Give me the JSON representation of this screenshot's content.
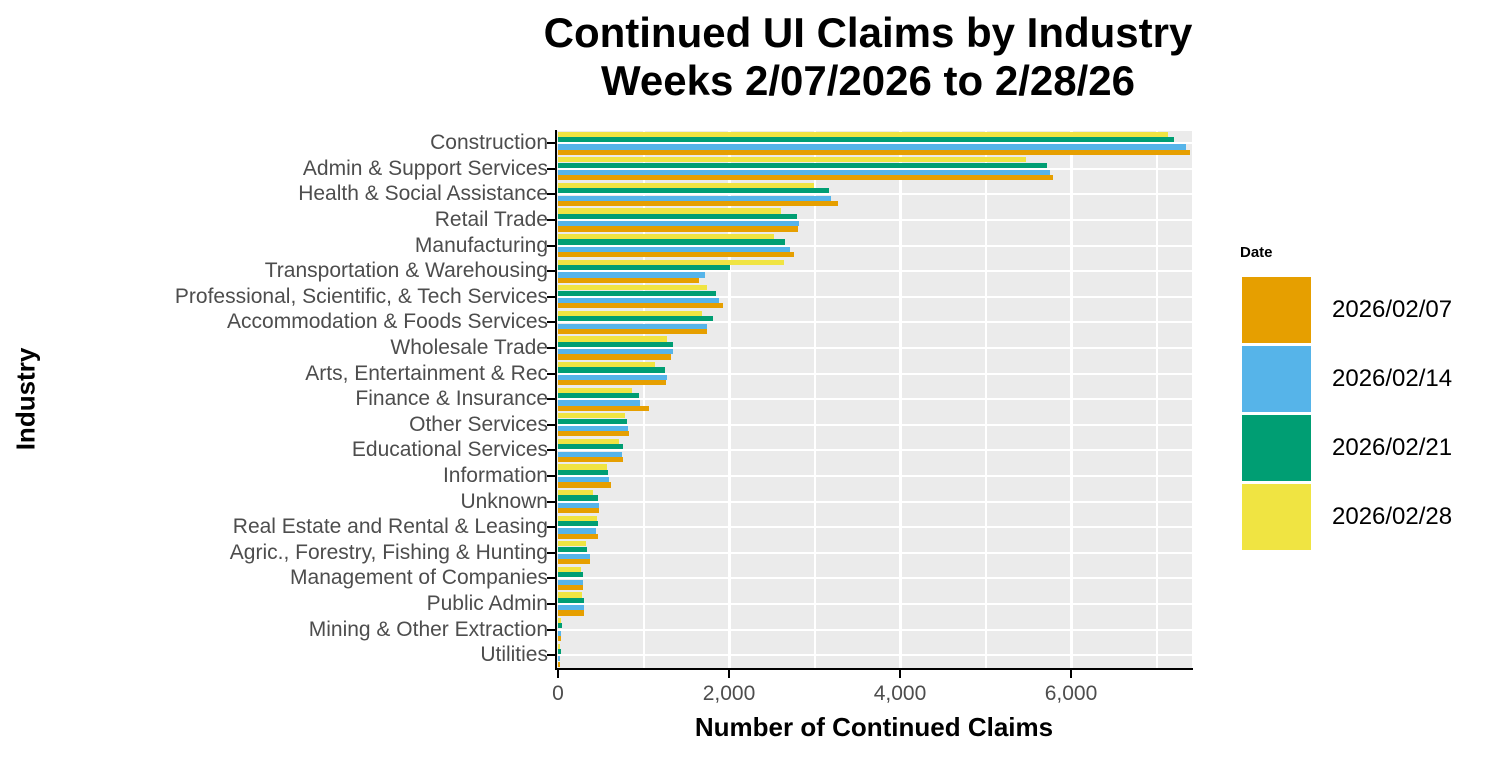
{
  "title": {
    "line1": "Continued UI Claims by Industry",
    "line2": "Weeks 2/07/2026 to 2/28/26"
  },
  "x_axis": {
    "label": "Number of Continued Claims",
    "ticks": [
      {
        "label": "0",
        "value": 0
      },
      {
        "label": "2,000",
        "value": 2000
      },
      {
        "label": "4,000",
        "value": 4000
      },
      {
        "label": "6,000",
        "value": 6000
      }
    ],
    "minor_ticks": [
      1000,
      3000,
      5000,
      7000
    ],
    "max": 7400
  },
  "y_axis": {
    "label": "Industry"
  },
  "legend": {
    "title": "Date",
    "entries": [
      {
        "label": "2026/02/07",
        "color": "#E69F00"
      },
      {
        "label": "2026/02/14",
        "color": "#56B4E9"
      },
      {
        "label": "2026/02/21",
        "color": "#009E73"
      },
      {
        "label": "2026/02/28",
        "color": "#F0E442"
      }
    ]
  },
  "colors": {
    "panel_background": "#EBEBEB",
    "gridline": "#FFFFFF",
    "axis_text": "#4D4D4D",
    "axis_line": "#000000",
    "title_text": "#000000"
  },
  "chart_data": {
    "type": "bar",
    "orientation": "horizontal",
    "title": "Continued UI Claims by Industry Weeks 2/07/2026 to 2/28/26",
    "xlabel": "Number of Continued Claims",
    "ylabel": "Industry",
    "xlim": [
      0,
      7400
    ],
    "grid": true,
    "legend_position": "right",
    "legend_title": "Date",
    "categories": [
      "Construction",
      "Admin & Support Services",
      "Health & Social Assistance",
      "Retail Trade",
      "Manufacturing",
      "Transportation & Warehousing",
      "Professional, Scientific, & Tech Services",
      "Accommodation & Foods Services",
      "Wholesale Trade",
      "Arts, Entertainment & Rec",
      "Finance & Insurance",
      "Other Services",
      "Educational Services",
      "Information",
      "Unknown",
      "Real Estate and Rental & Leasing",
      "Agric., Forestry, Fishing & Hunting",
      "Management of Companies",
      "Public Admin",
      "Mining & Other Extraction",
      "Utilities"
    ],
    "series": [
      {
        "name": "2026/02/07",
        "color": "#E69F00",
        "values": [
          7390,
          5790,
          3270,
          2810,
          2760,
          1650,
          1930,
          1740,
          1320,
          1260,
          1060,
          830,
          760,
          620,
          480,
          470,
          370,
          290,
          300,
          40,
          25
        ]
      },
      {
        "name": "2026/02/14",
        "color": "#56B4E9",
        "values": [
          7350,
          5750,
          3190,
          2820,
          2710,
          1720,
          1880,
          1740,
          1340,
          1270,
          960,
          820,
          750,
          600,
          480,
          450,
          370,
          290,
          300,
          40,
          25
        ]
      },
      {
        "name": "2026/02/21",
        "color": "#009E73",
        "values": [
          7200,
          5720,
          3170,
          2800,
          2650,
          2010,
          1850,
          1810,
          1340,
          1250,
          950,
          810,
          760,
          590,
          470,
          470,
          340,
          290,
          300,
          45,
          30
        ]
      },
      {
        "name": "2026/02/28",
        "color": "#F0E442",
        "values": [
          7130,
          5470,
          2990,
          2610,
          2530,
          2640,
          1740,
          1680,
          1280,
          1130,
          870,
          780,
          710,
          570,
          410,
          460,
          330,
          270,
          280,
          35,
          20
        ]
      }
    ]
  }
}
